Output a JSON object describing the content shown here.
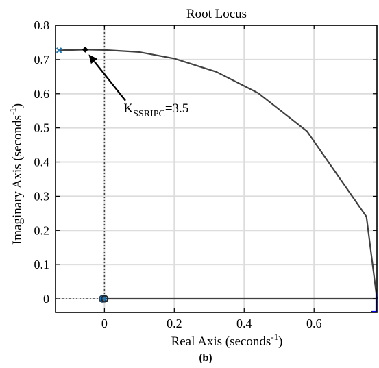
{
  "chart_data": {
    "type": "line",
    "title": "Root Locus",
    "xlabel": {
      "main": "Real Axis (seconds",
      "sup": "-1",
      "close": ")"
    },
    "ylabel": {
      "main": "Imaginary Axis (seconds",
      "sup": "-1",
      "close": ")"
    },
    "xlim": [
      -0.14,
      0.78
    ],
    "ylim": [
      -0.04,
      0.8
    ],
    "grid": true,
    "xticks": [
      0,
      0.2,
      0.4,
      0.6
    ],
    "xtick_labels": [
      "0",
      "0.2",
      "0.4",
      "0.6"
    ],
    "yticks": [
      0,
      0.1,
      0.2,
      0.3,
      0.4,
      0.5,
      0.6,
      0.7,
      0.8
    ],
    "ytick_labels": [
      "0",
      "0.1",
      "0.2",
      "0.3",
      "0.4",
      "0.5",
      "0.6",
      "0.7",
      "0.8"
    ],
    "series": [
      {
        "kind": "locus-branch",
        "color": "#404040",
        "points": [
          [
            -0.13,
            0.727
          ],
          [
            -0.055,
            0.729
          ],
          [
            0.0,
            0.728
          ],
          [
            0.1,
            0.722
          ],
          [
            0.2,
            0.703
          ],
          [
            0.32,
            0.664
          ],
          [
            0.44,
            0.602
          ],
          [
            0.58,
            0.49
          ],
          [
            0.75,
            0.24
          ],
          [
            0.775,
            0.04
          ],
          [
            0.78,
            0.0
          ]
        ]
      },
      {
        "kind": "locus-branch",
        "color": "#404040",
        "points": [
          [
            -0.01,
            0.0
          ],
          [
            0.78,
            0.0
          ]
        ]
      }
    ],
    "poles": [
      {
        "x": -0.13,
        "y": 0.727,
        "color": "#1f77b4",
        "marker": "x"
      }
    ],
    "zeros": [
      {
        "x": -0.005,
        "y": 0.0,
        "color": "#1f77b4",
        "marker": "o"
      }
    ],
    "reference_lines": [
      {
        "orientation": "vertical",
        "value": 0,
        "range": [
          0,
          0.8
        ],
        "style": "dotted"
      },
      {
        "orientation": "horizontal",
        "value": 0,
        "range": [
          -0.14,
          0
        ],
        "style": "dotted"
      }
    ],
    "highlight_point": {
      "x": -0.055,
      "y": 0.729,
      "marker": "diamond"
    },
    "annotation": {
      "base": "K",
      "sub": "SSRIPC",
      "rest": "=3.5",
      "text_anchor": {
        "x": 0.055,
        "y": 0.545
      },
      "arrow_from": {
        "x": 0.06,
        "y": 0.58
      },
      "arrow_to": {
        "x": -0.045,
        "y": 0.715
      }
    },
    "caption": "(b)"
  }
}
